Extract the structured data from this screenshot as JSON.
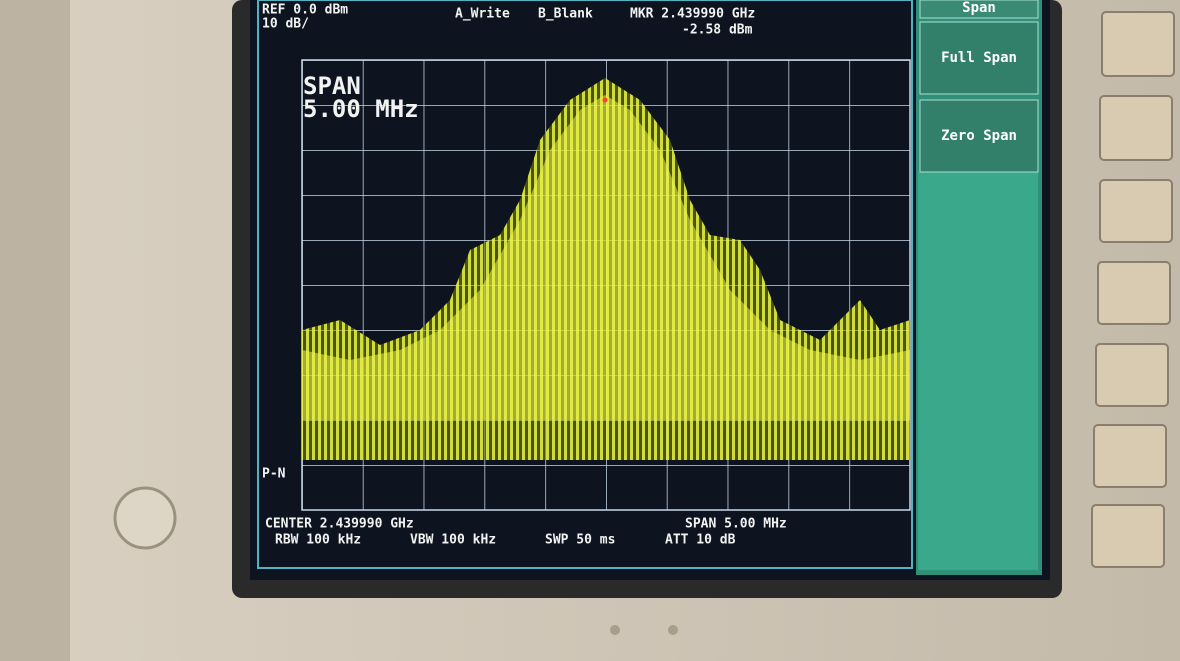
{
  "screen": {
    "header": {
      "ref": "REF 0.0 dBm",
      "scale": "10 dB/",
      "trace_a": "A_Write",
      "trace_b": "B_Blank",
      "marker_freq": "MKR 2.439990 GHz",
      "marker_level": "-2.58 dBm"
    },
    "overlay": {
      "label": "SPAN",
      "value": "5.00 MHz"
    },
    "detector": "P-N",
    "footer": {
      "center": "CENTER 2.439990 GHz",
      "span": "SPAN 5.00 MHz",
      "rbw": "RBW 100 kHz",
      "vbw": "VBW 100 kHz",
      "sweep": "SWP 50 ms",
      "att": "ATT 10 dB"
    }
  },
  "softkeys": [
    "Span",
    "Full Span",
    "Zero Span"
  ]
}
